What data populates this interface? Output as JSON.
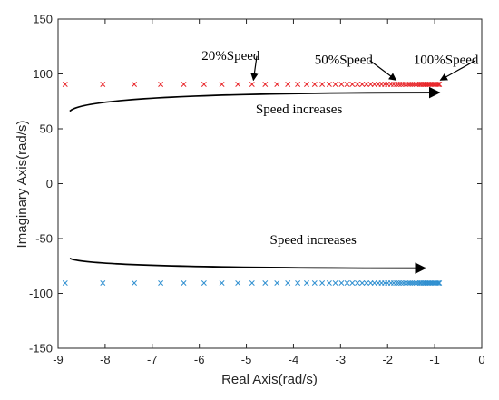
{
  "chart_data": {
    "type": "scatter",
    "xlabel": "Real Axis(rad/s)",
    "ylabel": "Imaginary Axis(rad/s)",
    "xlim": [
      -9,
      0
    ],
    "ylim": [
      -150,
      150
    ],
    "xticks": [
      -9,
      -8,
      -7,
      -6,
      -5,
      -4,
      -3,
      -2,
      -1,
      0
    ],
    "yticks": [
      -150,
      -100,
      -50,
      0,
      50,
      100,
      150
    ],
    "grid": false,
    "marker": "x",
    "series": [
      {
        "color": "#e8262a",
        "x": [
          -8.85,
          -8.05,
          -7.38,
          -6.82,
          -6.33,
          -5.9,
          -5.52,
          -5.18,
          -4.88,
          -4.6,
          -4.35,
          -4.12,
          -3.91,
          -3.72,
          -3.55,
          -3.39,
          -3.24,
          -3.11,
          -2.98,
          -2.86,
          -2.75,
          -2.64,
          -2.54,
          -2.45,
          -2.36,
          -2.28,
          -2.2,
          -2.13,
          -2.06,
          -2.0,
          -1.93,
          -1.87,
          -1.81,
          -1.76,
          -1.71,
          -1.66,
          -1.61,
          -1.56,
          -1.52,
          -1.48,
          -1.44,
          -1.4,
          -1.36,
          -1.32,
          -1.29,
          -1.25,
          -1.22,
          -1.19,
          -1.16,
          -1.13,
          -1.1,
          -1.07,
          -1.04,
          -1.01,
          -0.98,
          -0.95,
          -0.92,
          -0.9
        ],
        "y": [
          90.5,
          90.5,
          90.5,
          90.5,
          90.5,
          90.5,
          90.5,
          90.5,
          90.5,
          90.5,
          90.5,
          90.5,
          90.5,
          90.5,
          90.5,
          90.5,
          90.5,
          90.5,
          90.5,
          90.5,
          90.5,
          90.5,
          90.5,
          90.5,
          90.5,
          90.5,
          90.5,
          90.5,
          90.5,
          90.5,
          90.5,
          90.5,
          90.5,
          90.5,
          90.5,
          90.5,
          90.5,
          90.5,
          90.5,
          90.5,
          90.5,
          90.5,
          90.5,
          90.5,
          90.5,
          90.5,
          90.5,
          90.5,
          90.5,
          90.5,
          90.5,
          90.5,
          90.5,
          90.5,
          90.5,
          90.5,
          90.5,
          90.5
        ]
      },
      {
        "color": "#2f8fd0",
        "x": [
          -8.85,
          -8.05,
          -7.38,
          -6.82,
          -6.33,
          -5.9,
          -5.52,
          -5.18,
          -4.88,
          -4.6,
          -4.35,
          -4.12,
          -3.91,
          -3.72,
          -3.55,
          -3.39,
          -3.24,
          -3.11,
          -2.98,
          -2.86,
          -2.75,
          -2.64,
          -2.54,
          -2.45,
          -2.36,
          -2.28,
          -2.2,
          -2.13,
          -2.06,
          -2.0,
          -1.93,
          -1.87,
          -1.81,
          -1.76,
          -1.71,
          -1.66,
          -1.61,
          -1.56,
          -1.52,
          -1.48,
          -1.44,
          -1.4,
          -1.36,
          -1.32,
          -1.29,
          -1.25,
          -1.22,
          -1.19,
          -1.16,
          -1.13,
          -1.1,
          -1.07,
          -1.04,
          -1.01,
          -0.98,
          -0.95,
          -0.92,
          -0.9
        ],
        "y": [
          -90.5,
          -90.5,
          -90.5,
          -90.5,
          -90.5,
          -90.5,
          -90.5,
          -90.5,
          -90.5,
          -90.5,
          -90.5,
          -90.5,
          -90.5,
          -90.5,
          -90.5,
          -90.5,
          -90.5,
          -90.5,
          -90.5,
          -90.5,
          -90.5,
          -90.5,
          -90.5,
          -90.5,
          -90.5,
          -90.5,
          -90.5,
          -90.5,
          -90.5,
          -90.5,
          -90.5,
          -90.5,
          -90.5,
          -90.5,
          -90.5,
          -90.5,
          -90.5,
          -90.5,
          -90.5,
          -90.5,
          -90.5,
          -90.5,
          -90.5,
          -90.5,
          -90.5,
          -90.5,
          -90.5,
          -90.5,
          -90.5,
          -90.5,
          -90.5,
          -90.5,
          -90.5,
          -90.5,
          -90.5,
          -90.5,
          -90.5,
          -90.5
        ]
      }
    ],
    "annotations": [
      {
        "text": "20%Speed",
        "x": -5.95,
        "y": 113,
        "arrow_to": [
          -4.85,
          91
        ]
      },
      {
        "text": "50%Speed",
        "x": -3.55,
        "y": 109,
        "arrow_to": [
          -1.82,
          91
        ]
      },
      {
        "text": "100%Speed",
        "x": -1.45,
        "y": 109,
        "arrow_to": [
          -0.88,
          91
        ]
      },
      {
        "text": "Speed increases",
        "x": -4.8,
        "y": 64,
        "arrow_from": [
          -8.75,
          66
        ],
        "arrow_to": [
          -0.9,
          83
        ]
      },
      {
        "text": "Speed increases",
        "x": -4.5,
        "y": -55,
        "arrow_from": [
          -8.75,
          -68
        ],
        "arrow_to": [
          -1.2,
          -77
        ]
      }
    ]
  }
}
